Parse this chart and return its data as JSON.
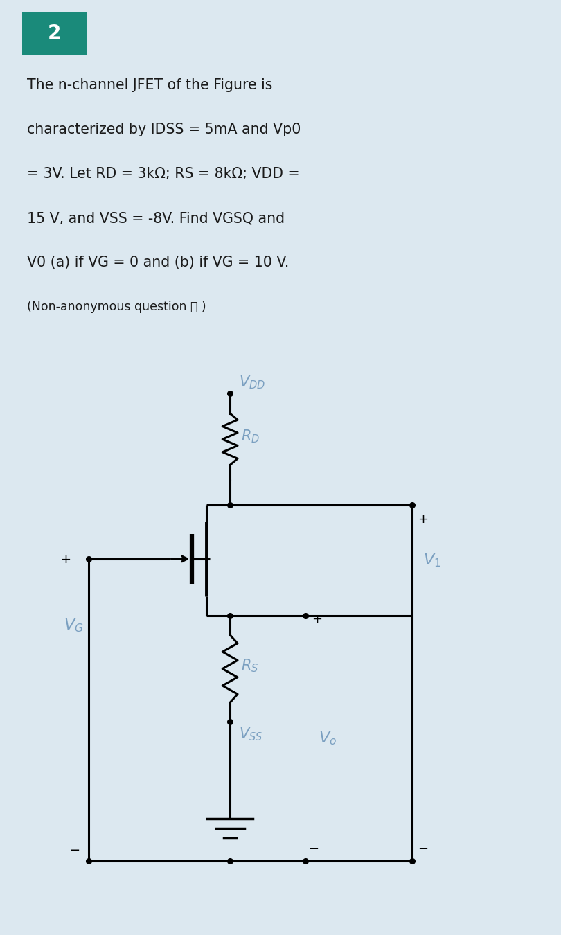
{
  "bg_outer": "#dce8f0",
  "bg_circuit": "#ffffff",
  "text_color": "#1a1a1a",
  "label_color": "#7a9fc0",
  "teal_color": "#1a8a7a",
  "line_color": "#000000",
  "title_lines": [
    "The n-channel JFET of the Figure is",
    "characterized by IDSS = 5mA and Vp0",
    "= 3V. Let RD = 3kΩ; RS = 8kΩ; VDD =",
    "15 V, and VSS = -8V. Find VGSQ and",
    "V0 (a) if VG = 0 and (b) if VG = 10 V."
  ],
  "subtitle": "(Non-anonymous question ⓘ )",
  "VDD_label": "$V_{DD}$",
  "RD_label": "$R_D$",
  "RS_label": "$R_S$",
  "VSS_label": "$V_{SS}$",
  "VG_label": "$V_G$",
  "Vo_label": "$V_o$",
  "V1_label": "$V_1$"
}
